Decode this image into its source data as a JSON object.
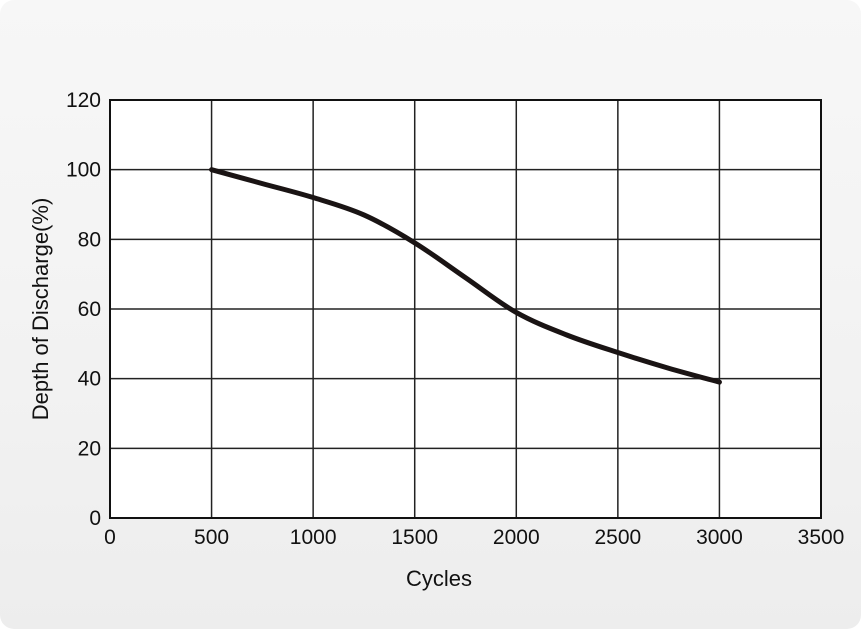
{
  "chart_data": {
    "type": "line",
    "xlabel": "Cycles",
    "ylabel": "Depth of Discharge(%)",
    "xlim": [
      0,
      3500
    ],
    "ylim": [
      0,
      120
    ],
    "x_ticks": [
      0,
      500,
      1000,
      1500,
      2000,
      2500,
      3000,
      3500
    ],
    "y_ticks": [
      0,
      20,
      40,
      60,
      80,
      100,
      120
    ],
    "grid": true,
    "series": [
      {
        "color": "#1a1414",
        "x": [
          500,
          750,
          1000,
          1250,
          1500,
          1750,
          2000,
          2250,
          2500,
          2750,
          3000
        ],
        "y": [
          100,
          96,
          92,
          87,
          79,
          69,
          59,
          52.5,
          47.5,
          43,
          39
        ]
      }
    ]
  }
}
